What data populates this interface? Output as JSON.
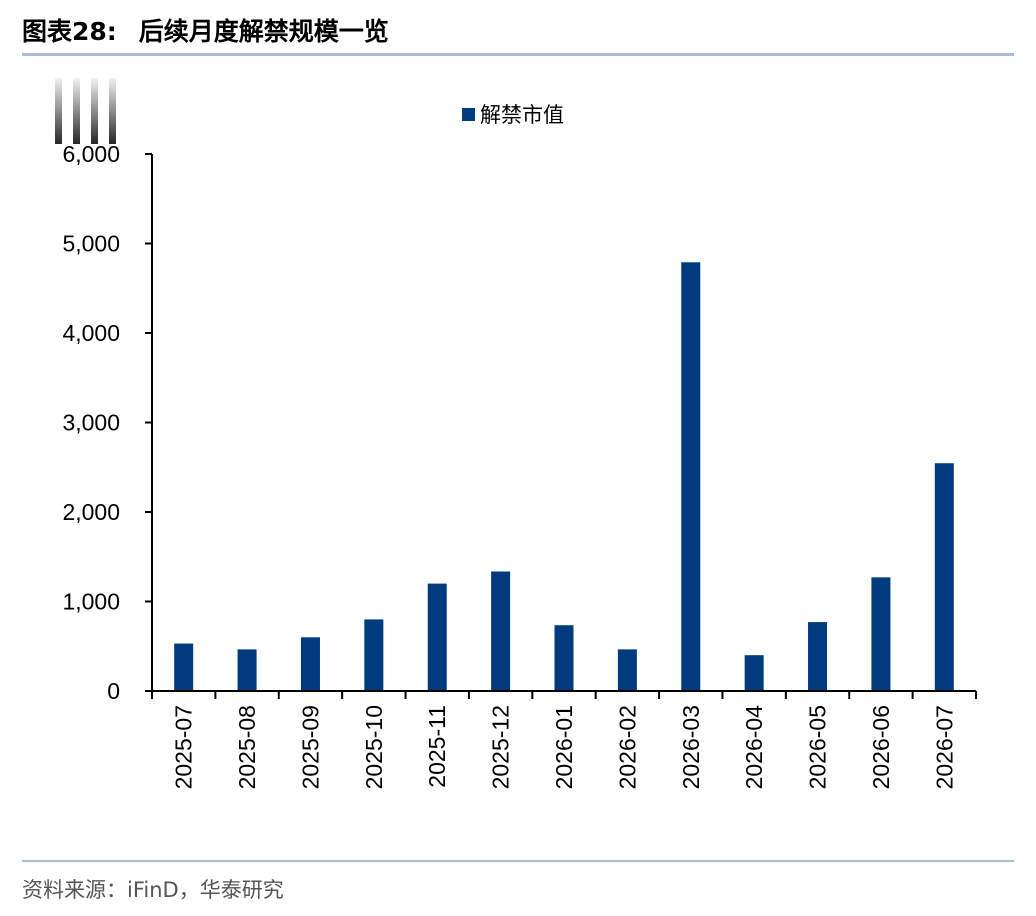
{
  "figure": {
    "label": "图表28:",
    "title": "后续月度解禁规模一览",
    "source": "资料来源：iFinD，华泰研究"
  },
  "colors": {
    "bar": "#003a7f",
    "axis": "#000000",
    "rule": "#a9bdd6"
  },
  "chart_data": {
    "type": "bar",
    "categories": [
      "2025-07",
      "2025-08",
      "2025-09",
      "2025-10",
      "2025-11",
      "2025-12",
      "2026-01",
      "2026-02",
      "2026-03",
      "2026-04",
      "2026-05",
      "2026-06",
      "2026-07"
    ],
    "series": [
      {
        "name": "解禁市值",
        "values": [
          530,
          465,
          600,
          800,
          1200,
          1335,
          735,
          465,
          4790,
          400,
          770,
          1270,
          2545
        ]
      }
    ],
    "xlabel": "",
    "ylabel": "",
    "ylim": [
      0,
      6000
    ],
    "yticks": [
      0,
      1000,
      2000,
      3000,
      4000,
      5000,
      6000
    ],
    "ytick_labels": [
      "0",
      "1,000",
      "2,000",
      "3,000",
      "4,000",
      "5,000",
      "6,000"
    ],
    "legend_position": "top-center",
    "grid": false
  }
}
